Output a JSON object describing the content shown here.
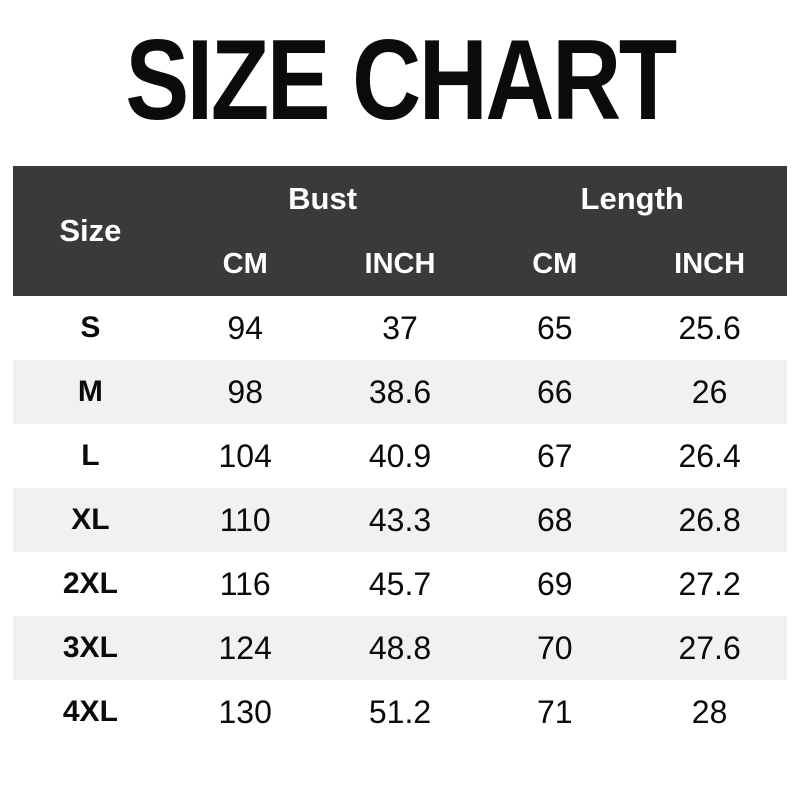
{
  "page": {
    "title": "SIZE CHART"
  },
  "colors": {
    "background": "#ffffff",
    "header_bg": "#3a3a3a",
    "header_text": "#ffffff",
    "zebra_row": "#f1f1f1",
    "body_text": "#0b0b0b"
  },
  "table": {
    "col_size_label": "Size",
    "group_bust": "Bust",
    "group_length": "Length",
    "subheaders": [
      "CM",
      "INCH",
      "CM",
      "INCH"
    ],
    "rows": [
      {
        "size": "S",
        "bust_cm": "94",
        "bust_inch": "37",
        "length_cm": "65",
        "length_inch": "25.6"
      },
      {
        "size": "M",
        "bust_cm": "98",
        "bust_inch": "38.6",
        "length_cm": "66",
        "length_inch": "26"
      },
      {
        "size": "L",
        "bust_cm": "104",
        "bust_inch": "40.9",
        "length_cm": "67",
        "length_inch": "26.4"
      },
      {
        "size": "XL",
        "bust_cm": "110",
        "bust_inch": "43.3",
        "length_cm": "68",
        "length_inch": "26.8"
      },
      {
        "size": "2XL",
        "bust_cm": "116",
        "bust_inch": "45.7",
        "length_cm": "69",
        "length_inch": "27.2"
      },
      {
        "size": "3XL",
        "bust_cm": "124",
        "bust_inch": "48.8",
        "length_cm": "70",
        "length_inch": "27.6"
      },
      {
        "size": "4XL",
        "bust_cm": "130",
        "bust_inch": "51.2",
        "length_cm": "71",
        "length_inch": "28"
      }
    ]
  },
  "chart_data": {
    "type": "table",
    "title": "SIZE CHART",
    "columns": [
      "Size",
      "Bust CM",
      "Bust INCH",
      "Length CM",
      "Length INCH"
    ],
    "rows": [
      [
        "S",
        94,
        37,
        65,
        25.6
      ],
      [
        "M",
        98,
        38.6,
        66,
        26
      ],
      [
        "L",
        104,
        40.9,
        67,
        26.4
      ],
      [
        "XL",
        110,
        43.3,
        68,
        26.8
      ],
      [
        "2XL",
        116,
        45.7,
        69,
        27.2
      ],
      [
        "3XL",
        124,
        48.8,
        70,
        27.6
      ],
      [
        "4XL",
        130,
        51.2,
        71,
        28
      ]
    ],
    "layout_hints": {
      "header_grouping": {
        "Bust": [
          "CM",
          "INCH"
        ],
        "Length": [
          "CM",
          "INCH"
        ]
      },
      "zebra_striping": true,
      "gridlines": false
    }
  }
}
